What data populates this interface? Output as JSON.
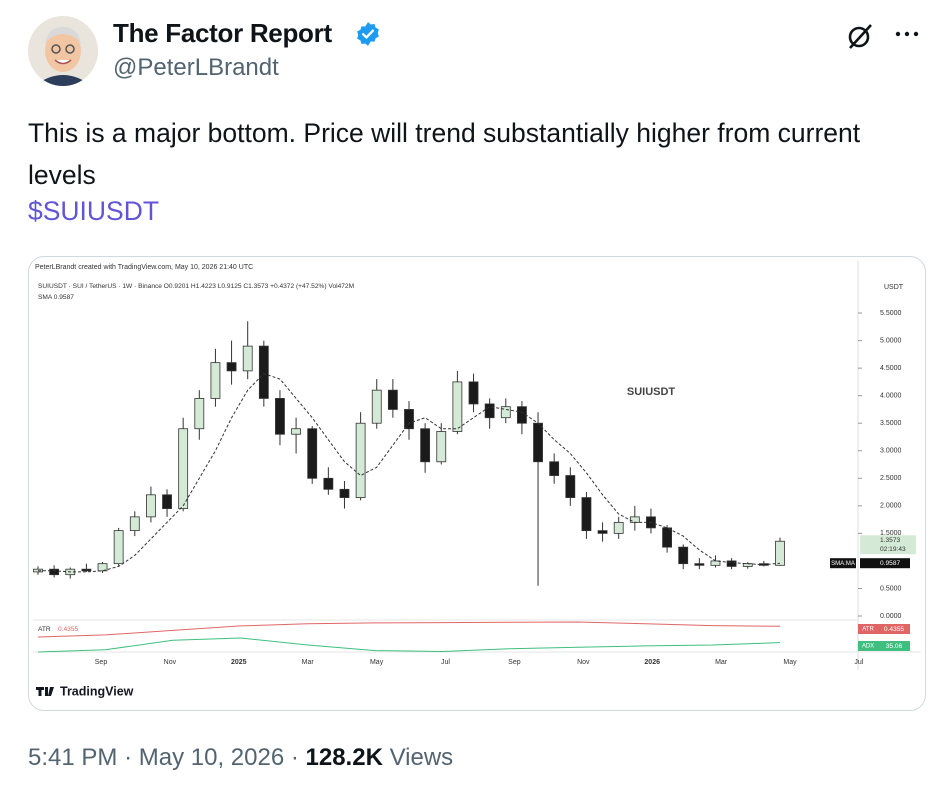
{
  "header": {
    "name": "The Factor Report",
    "handle": "@PeterLBrandt"
  },
  "post": {
    "text": "This is a major bottom. Price will trend substantially higher from current levels",
    "cashtag": "$SUIUSDT"
  },
  "chart_data": {
    "type": "candlestick",
    "credit": "PeterLBrandt created with TradingView.com, May 10, 2026 21:40 UTC",
    "legend": "SUIUSDT · SUI / TetherUS · 1W · Binance O0.9201 H1.4223 L0.9125 C1.3573 +0.4372 (+47.52%) Vol472M",
    "sma_legend": "SMA 0.9587",
    "watermark": "SUIUSDT",
    "y_unit": "USDT",
    "ylim": [
      0,
      6.1
    ],
    "yticks": [
      {
        "value": 0,
        "label": "0.0000"
      },
      {
        "value": 0.5,
        "label": "0.5000"
      },
      {
        "value": 1.5,
        "label": "1.5000"
      },
      {
        "value": 2,
        "label": "2.0000"
      },
      {
        "value": 2.5,
        "label": "2.5000"
      },
      {
        "value": 3,
        "label": "3.0000"
      },
      {
        "value": 3.5,
        "label": "3.5000"
      },
      {
        "value": 4,
        "label": "4.0000"
      },
      {
        "value": 4.5,
        "label": "4.5000"
      },
      {
        "value": 5,
        "label": "5.0000"
      },
      {
        "value": 5.5,
        "label": "5.5000"
      }
    ],
    "x_labels": [
      "Sep",
      "Nov",
      "2025",
      "Mar",
      "May",
      "Jul",
      "Sep",
      "Nov",
      "2026",
      "Mar",
      "May",
      "Jul"
    ],
    "candles": {
      "open": [
        0.8,
        0.85,
        0.75,
        0.85,
        0.82,
        0.95,
        1.55,
        1.8,
        2.2,
        1.95,
        3.4,
        3.95,
        4.6,
        4.45,
        4.9,
        3.95,
        3.3,
        3.4,
        2.5,
        2.3,
        2.15,
        3.5,
        4.1,
        3.75,
        3.4,
        2.8,
        3.35,
        4.25,
        3.85,
        3.6,
        3.8,
        3.5,
        2.8,
        2.55,
        2.15,
        1.55,
        1.5,
        1.7,
        1.8,
        1.6,
        1.25,
        0.95,
        0.92,
        1.0,
        0.9,
        0.95,
        0.9201
      ],
      "high": [
        0.9,
        0.92,
        0.88,
        0.95,
        0.98,
        1.6,
        1.9,
        2.35,
        2.3,
        3.6,
        4.1,
        4.85,
        5.0,
        5.35,
        5.0,
        4.1,
        3.6,
        3.45,
        2.7,
        2.45,
        3.7,
        4.3,
        4.3,
        3.9,
        3.5,
        3.5,
        4.45,
        4.4,
        3.95,
        3.95,
        3.9,
        3.7,
        2.95,
        2.7,
        2.25,
        1.7,
        1.8,
        2.0,
        1.95,
        1.65,
        1.3,
        1.05,
        1.1,
        1.05,
        0.98,
        1.0,
        1.4223
      ],
      "low": [
        0.75,
        0.7,
        0.68,
        0.8,
        0.78,
        0.9,
        1.45,
        1.7,
        1.8,
        1.9,
        3.2,
        3.8,
        4.2,
        4.3,
        3.8,
        3.1,
        2.95,
        2.4,
        2.2,
        1.95,
        2.1,
        3.4,
        3.6,
        3.2,
        2.6,
        2.75,
        3.3,
        3.7,
        3.4,
        3.5,
        3.3,
        0.55,
        2.4,
        2.0,
        1.4,
        1.35,
        1.4,
        1.55,
        1.5,
        1.15,
        0.85,
        0.85,
        0.88,
        0.85,
        0.86,
        0.9,
        0.9125
      ],
      "close": [
        0.85,
        0.75,
        0.85,
        0.82,
        0.95,
        1.55,
        1.8,
        2.2,
        1.95,
        3.4,
        3.95,
        4.6,
        4.45,
        4.9,
        3.95,
        3.3,
        3.4,
        2.5,
        2.3,
        2.15,
        3.5,
        4.1,
        3.75,
        3.4,
        2.8,
        3.35,
        4.25,
        3.85,
        3.6,
        3.8,
        3.5,
        2.8,
        2.55,
        2.15,
        1.55,
        1.5,
        1.7,
        1.8,
        1.6,
        1.25,
        0.95,
        0.92,
        1.0,
        0.9,
        0.95,
        0.92,
        1.3573
      ]
    },
    "up_color": "#d4ead6",
    "down_color": "#1b1b1b",
    "sma": {
      "name": "SMA:MA",
      "values": [
        0.82,
        0.82,
        0.8,
        0.8,
        0.82,
        0.9,
        1.1,
        1.4,
        1.7,
        2.0,
        2.5,
        3.0,
        3.6,
        4.1,
        4.4,
        4.3,
        3.95,
        3.6,
        3.2,
        2.8,
        2.55,
        2.7,
        3.1,
        3.5,
        3.6,
        3.4,
        3.4,
        3.6,
        3.8,
        3.75,
        3.7,
        3.5,
        3.2,
        2.95,
        2.6,
        2.2,
        1.85,
        1.7,
        1.7,
        1.6,
        1.45,
        1.2,
        1.0,
        0.97,
        0.95,
        0.93,
        0.9587
      ],
      "last_label": "0.9587"
    },
    "last_price": {
      "value": 1.3573,
      "label": "1.3573",
      "countdown": "02:19:43"
    },
    "indicators": [
      {
        "name": "ATR",
        "color": "#e06666",
        "values": [
          0.08,
          0.15,
          0.3,
          0.45,
          0.52,
          0.55,
          0.56,
          0.57,
          0.58,
          0.52,
          0.46,
          0.4355
        ],
        "last_label": "0.4355"
      },
      {
        "name": "ADX",
        "color": "#3fbf7f",
        "values": [
          15,
          20,
          40,
          45,
          30,
          18,
          16,
          22,
          25,
          28,
          30,
          35.06
        ],
        "last_label": "35.06"
      }
    ],
    "brand": "TradingView"
  },
  "footer": {
    "time": "5:41 PM",
    "separator": "·",
    "date": "May 10, 2026",
    "views": "128.2K",
    "views_label": "Views"
  }
}
